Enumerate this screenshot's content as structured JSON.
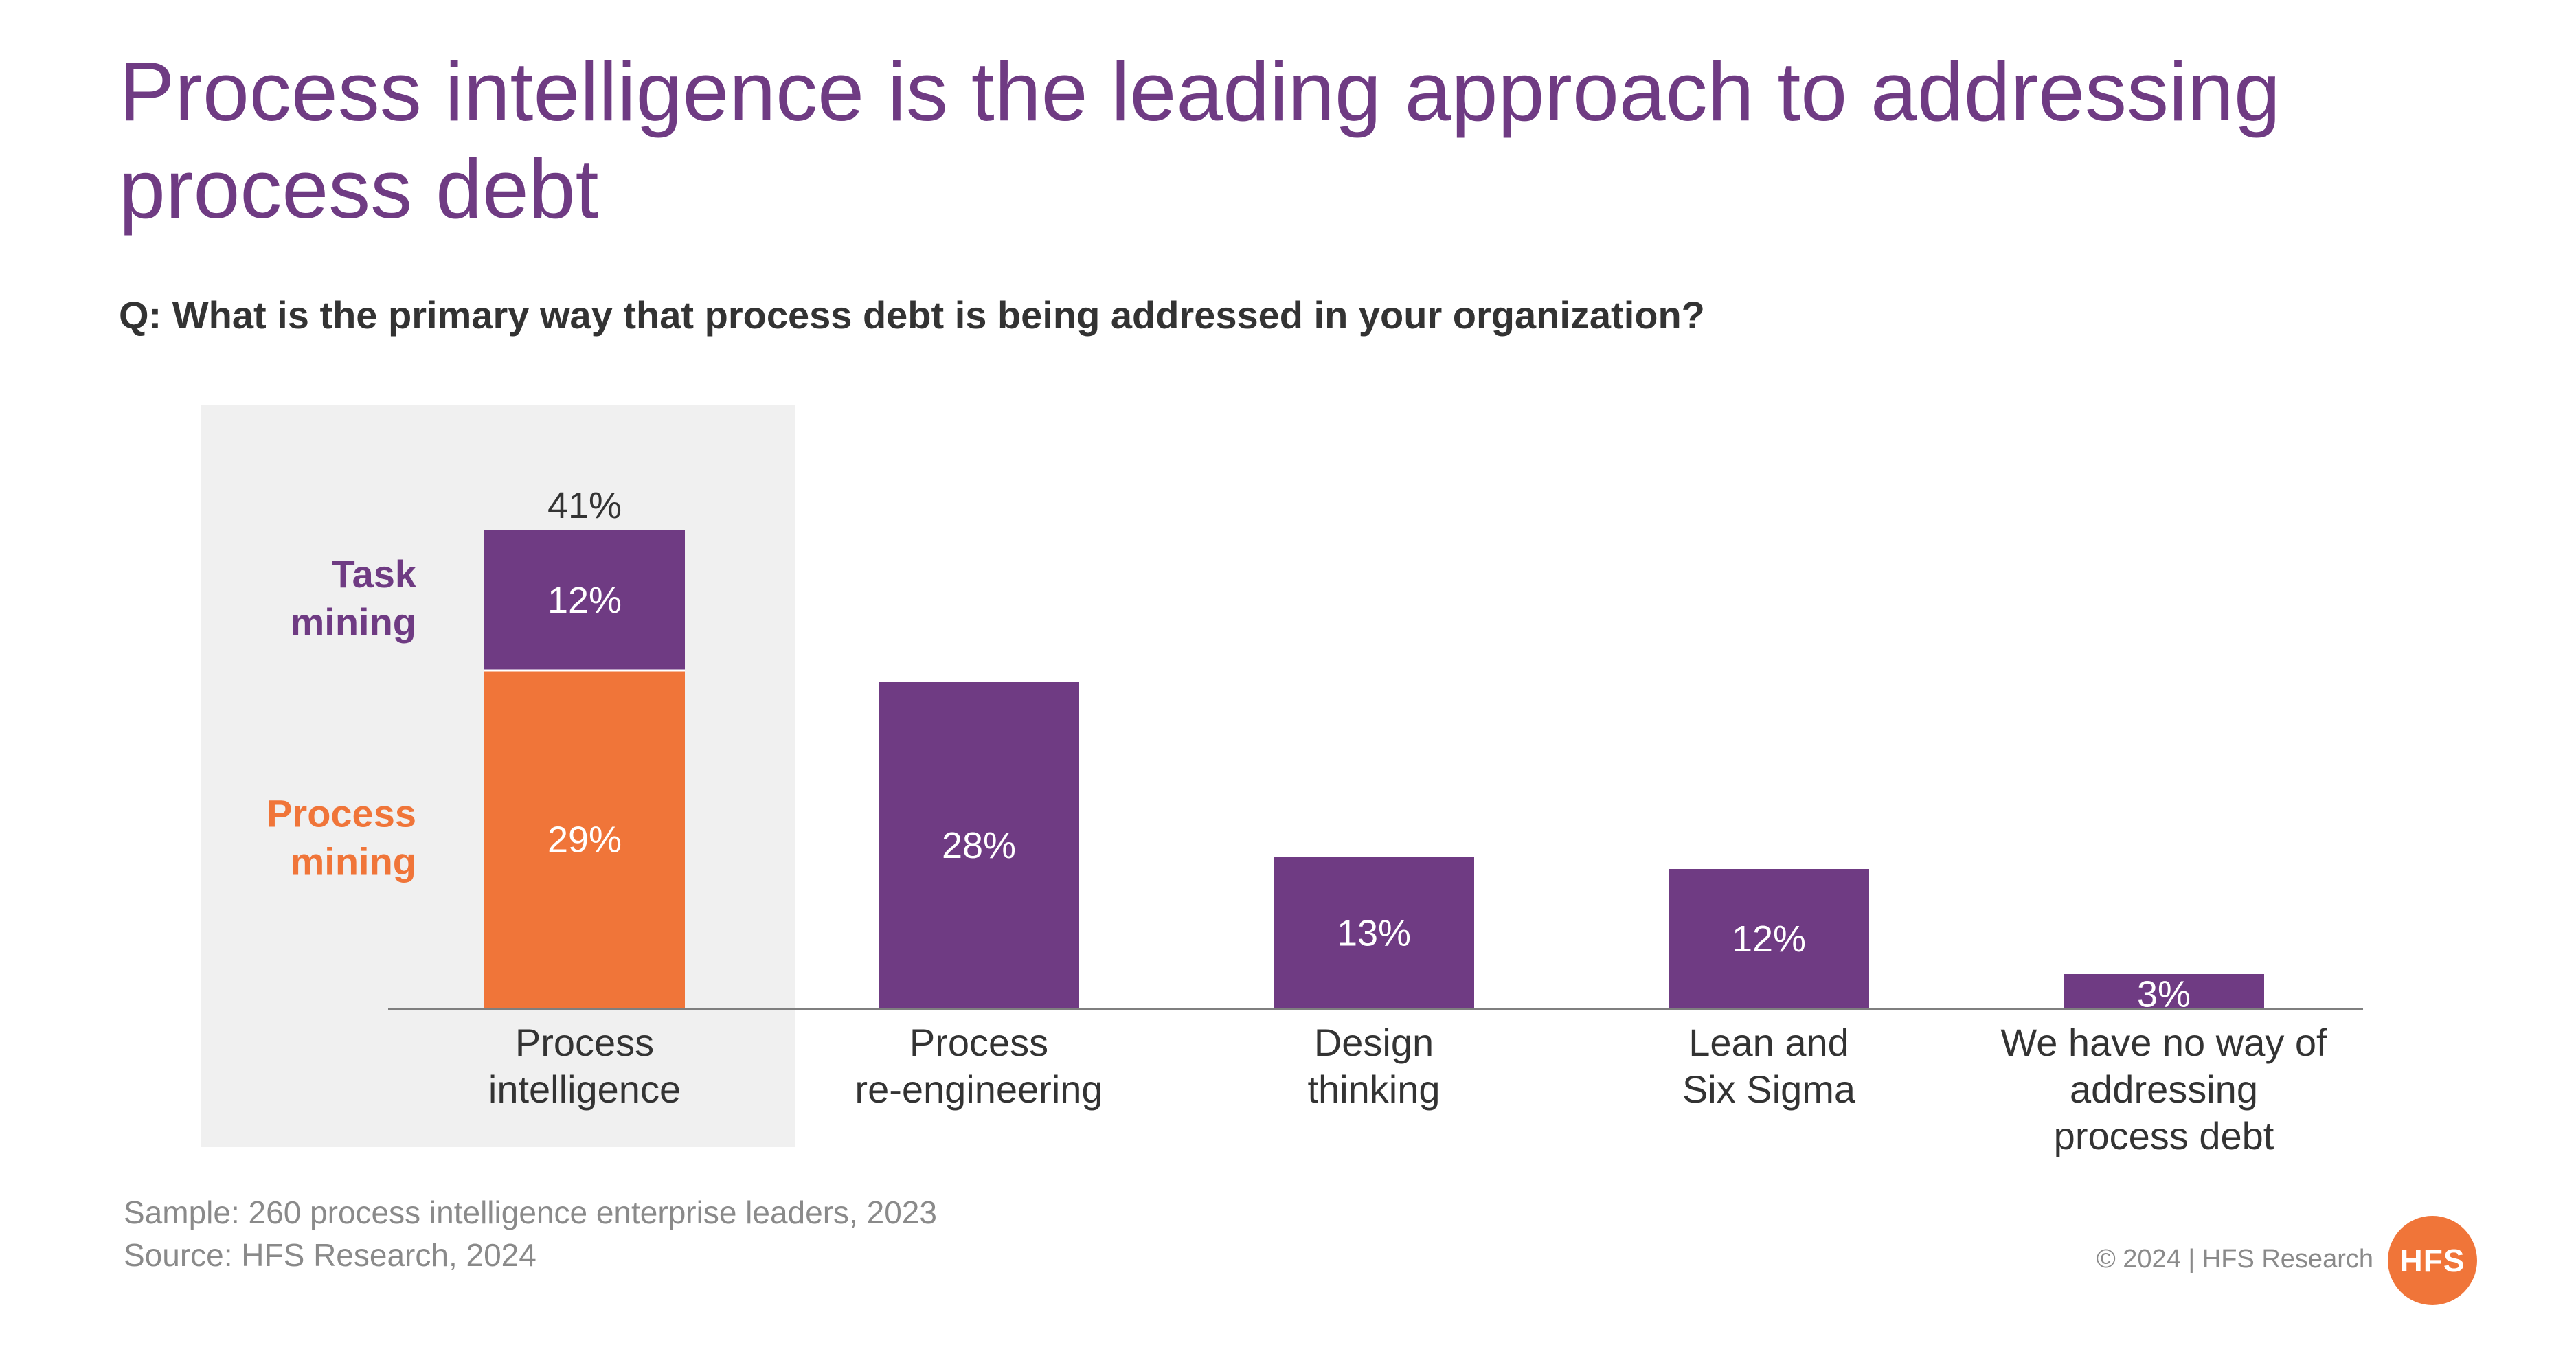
{
  "header": {
    "title": "Process intelligence is the leading approach to addressing process debt",
    "question": "Q: What is the primary way that process debt is being addressed in your organization?"
  },
  "chart_data": {
    "type": "bar",
    "categories": [
      [
        "Process",
        "intelligence"
      ],
      [
        "Process",
        "re-engineering"
      ],
      [
        "Design",
        "thinking"
      ],
      [
        "Lean and",
        "Six Sigma"
      ],
      [
        "We have no way of",
        "addressing",
        "process debt"
      ]
    ],
    "values": [
      41,
      28,
      13,
      12,
      3
    ],
    "value_labels": [
      "41%",
      "28%",
      "13%",
      "12%",
      "3%"
    ],
    "stacked_first_bar": {
      "segments": [
        {
          "name": "Process mining",
          "legend_lines": [
            "Process",
            "mining"
          ],
          "value": 29,
          "label": "29%",
          "color": "#f07539"
        },
        {
          "name": "Task mining",
          "legend_lines": [
            "Task",
            "mining"
          ],
          "value": 12,
          "label": "12%",
          "color": "#6f3b83"
        }
      ]
    },
    "bar_color": "#6f3b83",
    "highlight_background": "#f0f0f0",
    "ylim": [
      0,
      41
    ],
    "grid": false
  },
  "footer": {
    "sample": "Sample: 260 process intelligence enterprise leaders, 2023",
    "source": "Source: HFS Research, 2024",
    "copyright": "© 2024 | HFS Research",
    "logo_text": "HFS"
  },
  "colors": {
    "title": "#6f3b83",
    "purple": "#6f3b83",
    "orange": "#f07539"
  }
}
